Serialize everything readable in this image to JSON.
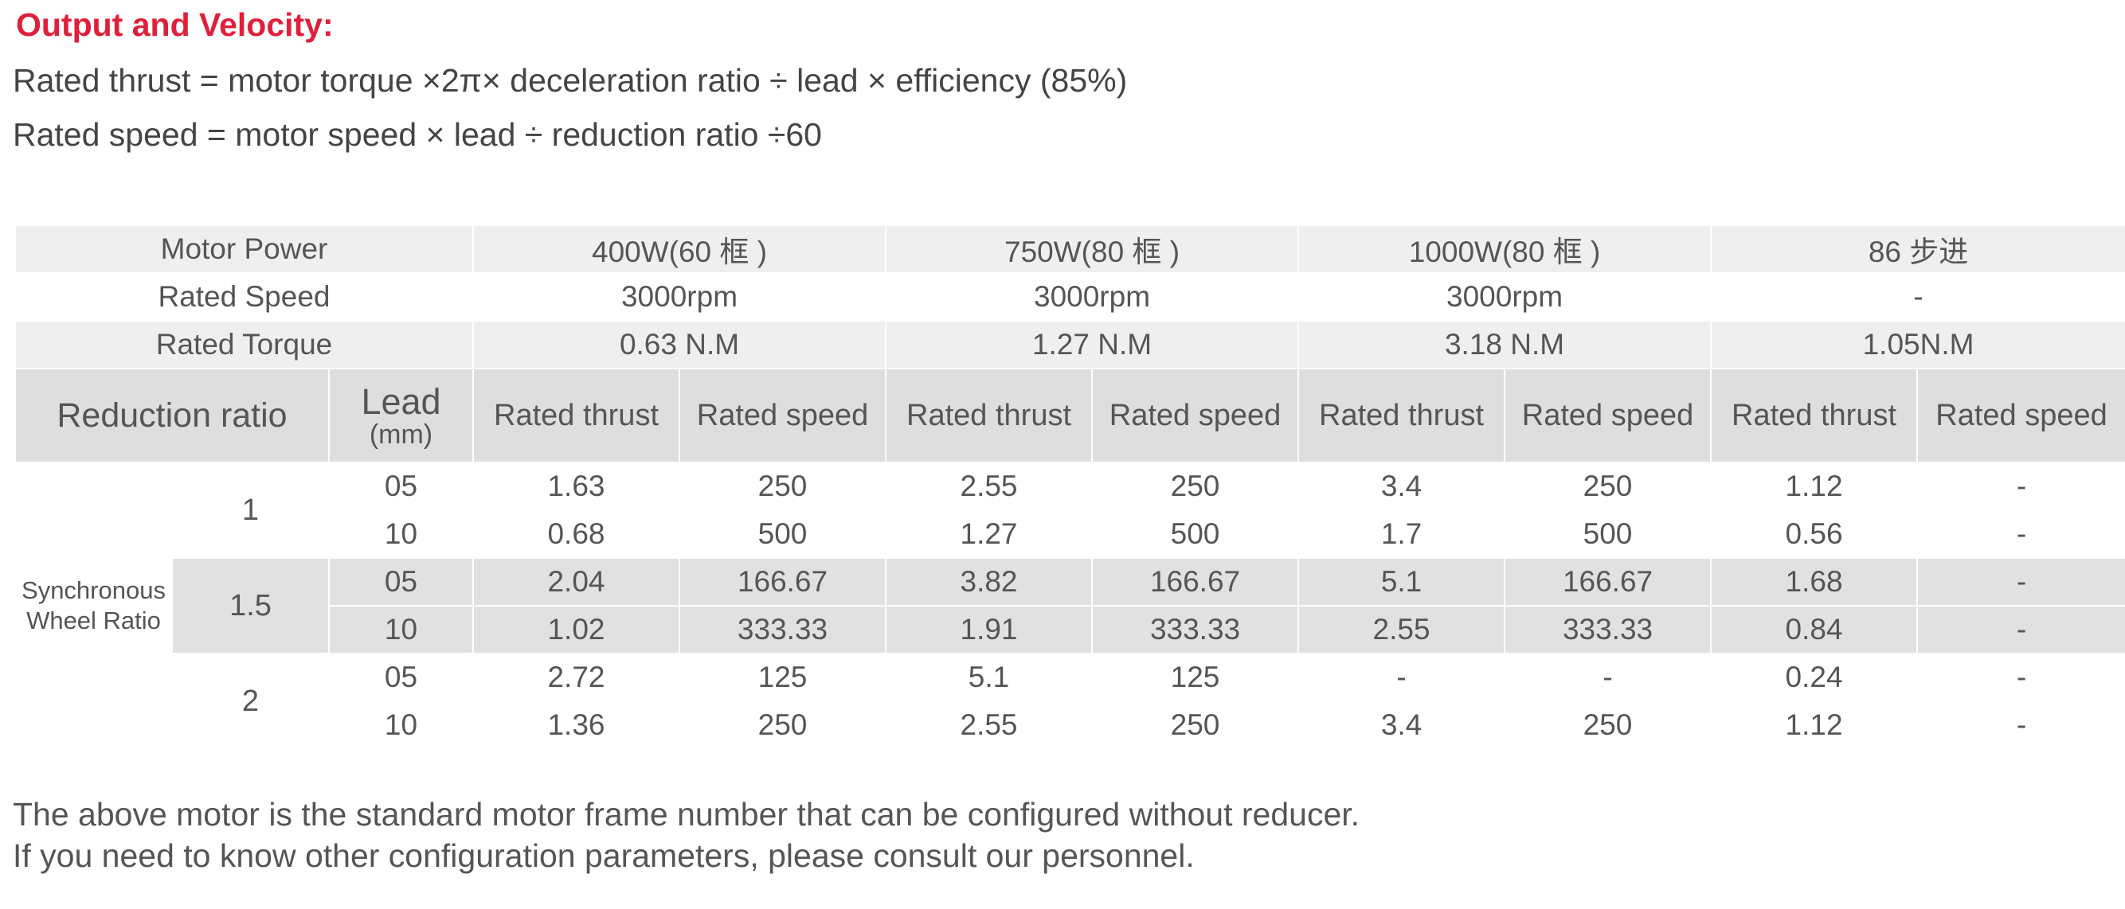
{
  "header": {
    "title": "Output and Velocity:",
    "formula_thrust": "Rated thrust = motor torque ×2π× deceleration ratio ÷ lead × efficiency (85%)",
    "formula_speed": "Rated speed = motor speed × lead ÷ reduction ratio ÷60"
  },
  "table": {
    "motor_power_label": "Motor Power",
    "rated_speed_label": "Rated Speed",
    "rated_torque_label": "Rated Torque",
    "motors": [
      {
        "power": "400W(60 框 )",
        "speed": "3000rpm",
        "torque": "0.63 N.M"
      },
      {
        "power": "750W(80 框 )",
        "speed": "3000rpm",
        "torque": "1.27 N.M"
      },
      {
        "power": "1000W(80 框 )",
        "speed": "3000rpm",
        "torque": "3.18 N.M"
      },
      {
        "power": "86 步进",
        "speed": "-",
        "torque": "1.05N.M"
      }
    ],
    "reduction_ratio_label": "Reduction ratio",
    "lead_label": "Lead",
    "lead_unit": "(mm)",
    "thrust_label": "Rated thrust",
    "speed_label": "Rated speed",
    "sync_label": "Synchronous Wheel Ratio",
    "rows": [
      {
        "ratio": "1",
        "lead": "05",
        "cells": [
          "1.63",
          "250",
          "2.55",
          "250",
          "3.4",
          "250",
          "1.12",
          "-"
        ]
      },
      {
        "ratio": "1",
        "lead": "10",
        "cells": [
          "0.68",
          "500",
          "1.27",
          "500",
          "1.7",
          "500",
          "0.56",
          "-"
        ]
      },
      {
        "ratio": "1.5",
        "lead": "05",
        "cells": [
          "2.04",
          "166.67",
          "3.82",
          "166.67",
          "5.1",
          "166.67",
          "1.68",
          "-"
        ]
      },
      {
        "ratio": "1.5",
        "lead": "10",
        "cells": [
          "1.02",
          "333.33",
          "1.91",
          "333.33",
          "2.55",
          "333.33",
          "0.84",
          "-"
        ]
      },
      {
        "ratio": "2",
        "lead": "05",
        "cells": [
          "2.72",
          "125",
          "5.1",
          "125",
          "-",
          "-",
          "0.24",
          "-"
        ]
      },
      {
        "ratio": "2",
        "lead": "10",
        "cells": [
          "1.36",
          "250",
          "2.55",
          "250",
          "3.4",
          "250",
          "1.12",
          "-"
        ]
      }
    ]
  },
  "notes": {
    "line1": "The above motor is the standard motor frame number that can be configured without reducer.",
    "line2": "If you need to know other configuration parameters, please consult our personnel."
  }
}
